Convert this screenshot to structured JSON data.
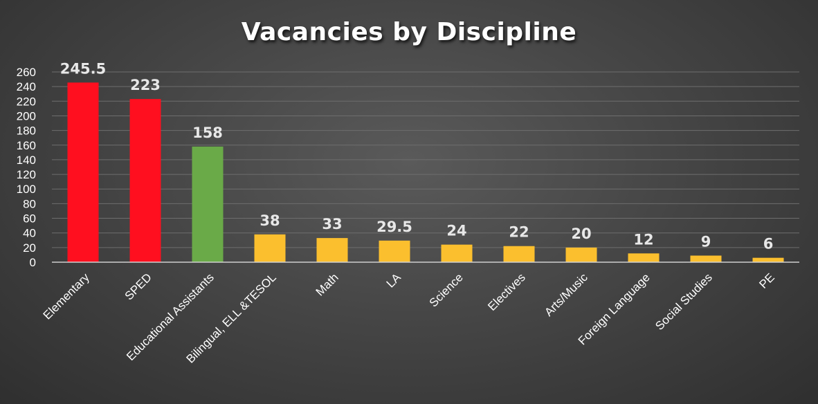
{
  "chart_data": {
    "type": "bar",
    "title": "Vacancies by Discipline",
    "xlabel": "",
    "ylabel": "",
    "ylim": [
      0,
      260
    ],
    "yticks": [
      0,
      20,
      40,
      60,
      80,
      100,
      120,
      140,
      160,
      180,
      200,
      220,
      240,
      260
    ],
    "grid": true,
    "legend": "none",
    "categories": [
      "Elementary",
      "SPED",
      "Educational Assistants",
      "Bilingual, ELL &TESOL",
      "Math",
      "LA",
      "Science",
      "Electives",
      "Arts/Music",
      "Foreign Language",
      "Social Studies",
      "PE"
    ],
    "values": [
      245.5,
      223,
      158,
      38,
      33,
      29.5,
      24,
      22,
      20,
      12,
      9,
      6
    ],
    "value_labels": [
      "245.5",
      "223",
      "158",
      "38",
      "33",
      "29.5",
      "24",
      "22",
      "20",
      "12",
      "9",
      "6"
    ],
    "bar_colors": [
      "#ff0f1f",
      "#ff0f1f",
      "#6aaa48",
      "#fbbf2e",
      "#fbbf2e",
      "#fbbf2e",
      "#fbbf2e",
      "#fbbf2e",
      "#fbbf2e",
      "#fbbf2e",
      "#fbbf2e",
      "#fbbf2e"
    ]
  }
}
